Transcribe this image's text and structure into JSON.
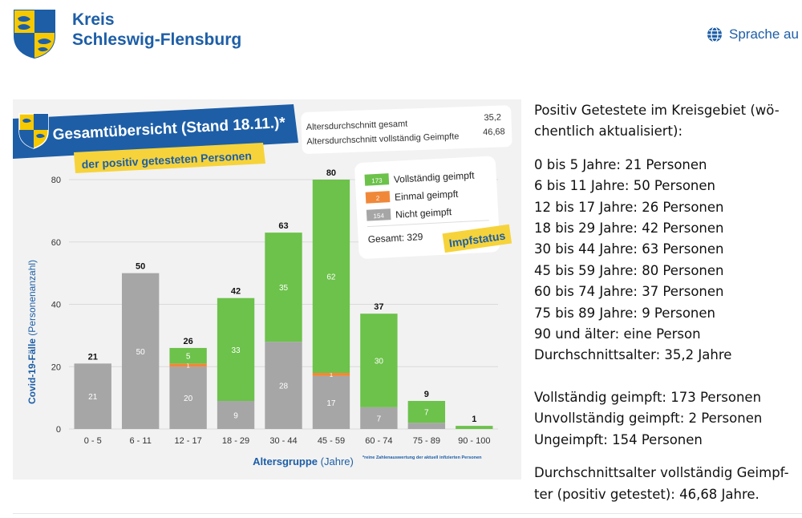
{
  "header": {
    "brand_line1": "Kreis",
    "brand_line2": "Schleswig-Flensburg",
    "language_label": "Sprache au"
  },
  "infographic": {
    "title": "Gesamtübersicht (Stand 18.11.)*",
    "subtitle": "der positiv getesteten Personen",
    "avg_total_label": "Altersdurchschnitt gesamt",
    "avg_total_value": "35,2",
    "avg_vacc_label": "Altersdurchschnitt vollständig Geimpfte",
    "avg_vacc_value": "46,68",
    "legend": [
      {
        "count": "173",
        "label": "Vollständig geimpft",
        "color": "#6cc24a"
      },
      {
        "count": "2",
        "label": "Einmal geimpft",
        "color": "#f0883a"
      },
      {
        "count": "154",
        "label": "Nicht geimpft",
        "color": "#a6a6a6"
      }
    ],
    "total_label": "Gesamt:  329",
    "impfstatus_label": "Impfstatus",
    "footnote": "*reine Zahlenauswertung der aktuell infizierten Personen"
  },
  "chart_data": {
    "type": "bar",
    "stacked": true,
    "categories": [
      "0 - 5",
      "6 - 11",
      "12 - 17",
      "18 - 29",
      "30 - 44",
      "45 - 59",
      "60 - 74",
      "75 - 89",
      "90 - 100"
    ],
    "series": [
      {
        "name": "Nicht geimpft",
        "values": [
          21,
          50,
          20,
          9,
          28,
          17,
          7,
          2,
          0
        ],
        "color": "#a6a6a6"
      },
      {
        "name": "Einmal geimpft",
        "values": [
          0,
          0,
          1,
          0,
          0,
          1,
          0,
          0,
          0
        ],
        "color": "#f0883a"
      },
      {
        "name": "Vollständig geimpft",
        "values": [
          0,
          0,
          5,
          33,
          35,
          62,
          30,
          7,
          1
        ],
        "color": "#6cc24a"
      }
    ],
    "segment_labels": [
      [
        "21",
        "",
        ""
      ],
      [
        "50",
        "",
        ""
      ],
      [
        "20",
        "1",
        "5"
      ],
      [
        "9",
        "",
        "33"
      ],
      [
        "28",
        "",
        "35"
      ],
      [
        "17",
        "1",
        "62"
      ],
      [
        "7",
        "",
        "30"
      ],
      [
        "",
        "",
        "7"
      ],
      [
        "",
        "",
        ""
      ]
    ],
    "totals": [
      21,
      50,
      26,
      42,
      63,
      80,
      37,
      9,
      1
    ],
    "xlabel_main": "Altersgruppe",
    "xlabel_unit": "(Jahre)",
    "ylabel_main": "Covid-19-Fälle",
    "ylabel_unit": "(Personenanzahl)",
    "ylim": [
      0,
      80
    ],
    "yticks": [
      0,
      20,
      40,
      60,
      80
    ],
    "grid": true
  },
  "side": {
    "intro": "Positiv Getestete im Kreisgebiet (wö-",
    "intro2": "chentlich aktualisiert):",
    "rows": [
      "0 bis 5 Jahre: 21 Personen",
      "6 bis 11 Jahre: 50 Personen",
      "12 bis 17 Jahre: 26 Personen",
      "18 bis 29 Jahre: 42 Personen",
      "30 bis 44 Jahre: 63 Personen",
      "45 bis 59 Jahre: 80 Personen",
      "60 bis 74 Jahre: 37 Personen",
      "75 bis 89 Jahre: 9 Personen",
      "90 und älter: eine Person",
      "Durchschnittsalter: 35,2 Jahre"
    ],
    "vacc_rows": [
      "Vollständig geimpft: 173 Personen",
      "Unvollständig geimpft: 2 Personen",
      "Ungeimpft: 154 Personen"
    ],
    "outro1": "Durchschnittsalter vollständig Geimpf-",
    "outro2": "ter (positiv getestet): 46,68 Jahre."
  }
}
